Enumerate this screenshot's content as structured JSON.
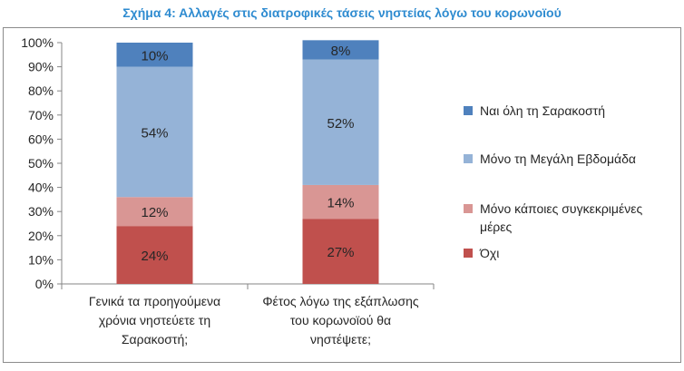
{
  "title": "Σχήμα 4: Αλλαγές στις διατροφικές τάσεις νηστείας λόγω του κορωνοϊού",
  "colors": {
    "title": "#2e8bd0",
    "series": [
      "#c0504d",
      "#d99694",
      "#95b3d7",
      "#4f81bd"
    ],
    "axis": "#868686",
    "text": "#262626"
  },
  "chart_data": {
    "type": "bar",
    "stacked": true,
    "percent": true,
    "title": "Σχήμα 4: Αλλαγές στις διατροφικές τάσεις νηστείας λόγω του κορωνοϊού",
    "categories": [
      "Γενικά τα προηγούμενα χρόνια νηστεύετε τη Σαρακοστή;",
      "Φέτος λόγω της εξάπλωσης του κορωνοϊού θα νηστέψετε;"
    ],
    "category_lines": [
      [
        "Γενικά τα προηγούμενα",
        "χρόνια νηστεύετε τη",
        "Σαρακοστή;"
      ],
      [
        "Φέτος λόγω της εξάπλωσης",
        "του κορωνοϊού θα",
        "νηστέψετε;"
      ]
    ],
    "series": [
      {
        "name": "Όχι",
        "values": [
          24,
          27
        ],
        "labels": [
          "24%",
          "27%"
        ]
      },
      {
        "name": "Μόνο κάποιες συγκεκριμένες μέρες",
        "values": [
          12,
          14
        ],
        "labels": [
          "12%",
          "14%"
        ]
      },
      {
        "name": "Μόνο τη Μεγάλη Εβδομάδα",
        "values": [
          54,
          52
        ],
        "labels": [
          "54%",
          "52%"
        ]
      },
      {
        "name": "Ναι όλη τη Σαρακοστή",
        "values": [
          10,
          8
        ],
        "labels": [
          "10%",
          "8%"
        ]
      }
    ],
    "legend_order": [
      3,
      2,
      1,
      0
    ],
    "legend_lines": [
      [
        "Όχι"
      ],
      [
        "Μόνο κάποιες συγκεκριμένες",
        "μέρες"
      ],
      [
        "Μόνο τη Μεγάλη Εβδομάδα"
      ],
      [
        "Ναι όλη τη Σαρακοστή"
      ]
    ],
    "yticks": [
      "0%",
      "10%",
      "20%",
      "30%",
      "40%",
      "50%",
      "60%",
      "70%",
      "80%",
      "90%",
      "100%"
    ],
    "ylim": [
      0,
      100
    ],
    "grid": false,
    "legend_position": "right"
  }
}
